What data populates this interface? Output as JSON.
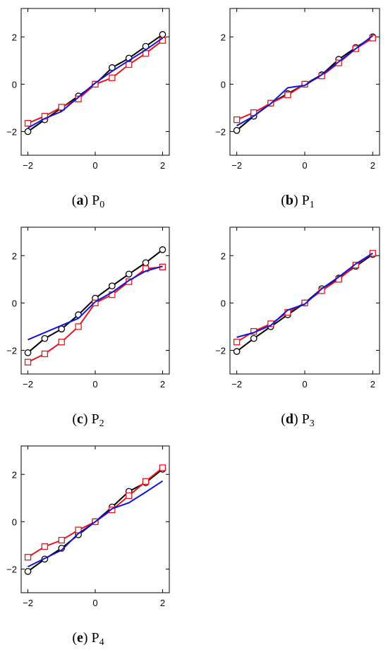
{
  "chart_data": [
    {
      "type": "line",
      "caption": {
        "letter": "a",
        "text": "P",
        "sub": "0"
      },
      "x": [
        -2,
        -1.5,
        -1,
        -0.5,
        0,
        0.5,
        1,
        1.5,
        2
      ],
      "xlim": [
        -2.2,
        2.2
      ],
      "ylim": [
        -3,
        3.2
      ],
      "xticks": [
        -2,
        0,
        2
      ],
      "yticks": [
        -2,
        0,
        2
      ],
      "series": [
        {
          "color": "#000000",
          "marker": "circle",
          "values": [
            -2.0,
            -1.5,
            -1.0,
            -0.5,
            0.0,
            0.7,
            1.1,
            1.6,
            2.1
          ]
        },
        {
          "color": "#e8141c",
          "marker": "square",
          "values": [
            -1.65,
            -1.35,
            -0.97,
            -0.62,
            0.0,
            0.27,
            0.83,
            1.3,
            1.85
          ]
        },
        {
          "color": "#1414d8",
          "marker": "none",
          "values": [
            -1.85,
            -1.45,
            -1.15,
            -0.55,
            0.05,
            0.55,
            1.0,
            1.45,
            1.95
          ]
        }
      ]
    },
    {
      "type": "line",
      "caption": {
        "letter": "b",
        "text": "P",
        "sub": "1"
      },
      "x": [
        -2,
        -1.5,
        -1,
        -0.5,
        0,
        0.5,
        1,
        1.5,
        2
      ],
      "xlim": [
        -2.2,
        2.2
      ],
      "ylim": [
        -3,
        3.2
      ],
      "xticks": [
        -2,
        0,
        2
      ],
      "yticks": [
        -2,
        0,
        2
      ],
      "series": [
        {
          "color": "#000000",
          "marker": "circle",
          "values": [
            -1.95,
            -1.35,
            -0.8,
            -0.4,
            0.0,
            0.4,
            1.05,
            1.55,
            2.0
          ]
        },
        {
          "color": "#e8141c",
          "marker": "square",
          "values": [
            -1.5,
            -1.2,
            -0.8,
            -0.45,
            0.0,
            0.35,
            0.9,
            1.5,
            1.95
          ]
        },
        {
          "color": "#1414d8",
          "marker": "none",
          "values": [
            -1.75,
            -1.35,
            -0.82,
            -0.15,
            -0.05,
            0.4,
            0.95,
            1.5,
            2.05
          ]
        }
      ]
    },
    {
      "type": "line",
      "caption": {
        "letter": "c",
        "text": "P",
        "sub": "2"
      },
      "x": [
        -2,
        -1.5,
        -1,
        -0.5,
        0,
        0.5,
        1,
        1.5,
        2
      ],
      "xlim": [
        -2.2,
        2.2
      ],
      "ylim": [
        -3,
        3.2
      ],
      "xticks": [
        -2,
        0,
        2
      ],
      "yticks": [
        -2,
        0,
        2
      ],
      "series": [
        {
          "color": "#000000",
          "marker": "circle",
          "values": [
            -2.1,
            -1.5,
            -1.1,
            -0.5,
            0.2,
            0.72,
            1.22,
            1.7,
            2.25
          ]
        },
        {
          "color": "#e8141c",
          "marker": "square",
          "values": [
            -2.5,
            -2.15,
            -1.65,
            -1.0,
            0.0,
            0.35,
            0.9,
            1.45,
            1.52
          ]
        },
        {
          "color": "#1414d8",
          "marker": "none",
          "values": [
            -1.55,
            -1.25,
            -0.95,
            -0.65,
            0.05,
            0.45,
            0.95,
            1.35,
            1.55
          ]
        }
      ]
    },
    {
      "type": "line",
      "caption": {
        "letter": "d",
        "text": "P",
        "sub": "3"
      },
      "x": [
        -2,
        -1.5,
        -1,
        -0.5,
        0,
        0.5,
        1,
        1.5,
        2
      ],
      "xlim": [
        -2.2,
        2.2
      ],
      "ylim": [
        -3,
        3.2
      ],
      "xticks": [
        -2,
        0,
        2
      ],
      "yticks": [
        -2,
        0,
        2
      ],
      "series": [
        {
          "color": "#000000",
          "marker": "circle",
          "values": [
            -2.05,
            -1.5,
            -1.0,
            -0.5,
            0.0,
            0.6,
            1.05,
            1.55,
            2.05
          ]
        },
        {
          "color": "#e8141c",
          "marker": "square",
          "values": [
            -1.65,
            -1.2,
            -0.88,
            -0.4,
            0.0,
            0.52,
            1.0,
            1.6,
            2.1
          ]
        },
        {
          "color": "#1414d8",
          "marker": "none",
          "values": [
            -1.45,
            -1.25,
            -0.95,
            -0.3,
            -0.05,
            0.6,
            1.1,
            1.65,
            2.1
          ]
        }
      ]
    },
    {
      "type": "line",
      "caption": {
        "letter": "e",
        "text": "P",
        "sub": "4"
      },
      "x": [
        -2,
        -1.5,
        -1,
        -0.5,
        0,
        0.5,
        1,
        1.5,
        2
      ],
      "xlim": [
        -2.2,
        2.2
      ],
      "ylim": [
        -3,
        3.2
      ],
      "xticks": [
        -2,
        0,
        2
      ],
      "yticks": [
        -2,
        0,
        2
      ],
      "series": [
        {
          "color": "#000000",
          "marker": "circle",
          "values": [
            -2.1,
            -1.58,
            -1.12,
            -0.55,
            0.0,
            0.62,
            1.28,
            1.65,
            2.22
          ]
        },
        {
          "color": "#e8141c",
          "marker": "square",
          "values": [
            -1.5,
            -1.05,
            -0.78,
            -0.35,
            0.0,
            0.5,
            1.1,
            1.7,
            2.28
          ]
        },
        {
          "color": "#1414d8",
          "marker": "none",
          "values": [
            -1.9,
            -1.55,
            -1.2,
            -0.5,
            0.0,
            0.55,
            0.8,
            1.25,
            1.72
          ]
        }
      ]
    }
  ]
}
